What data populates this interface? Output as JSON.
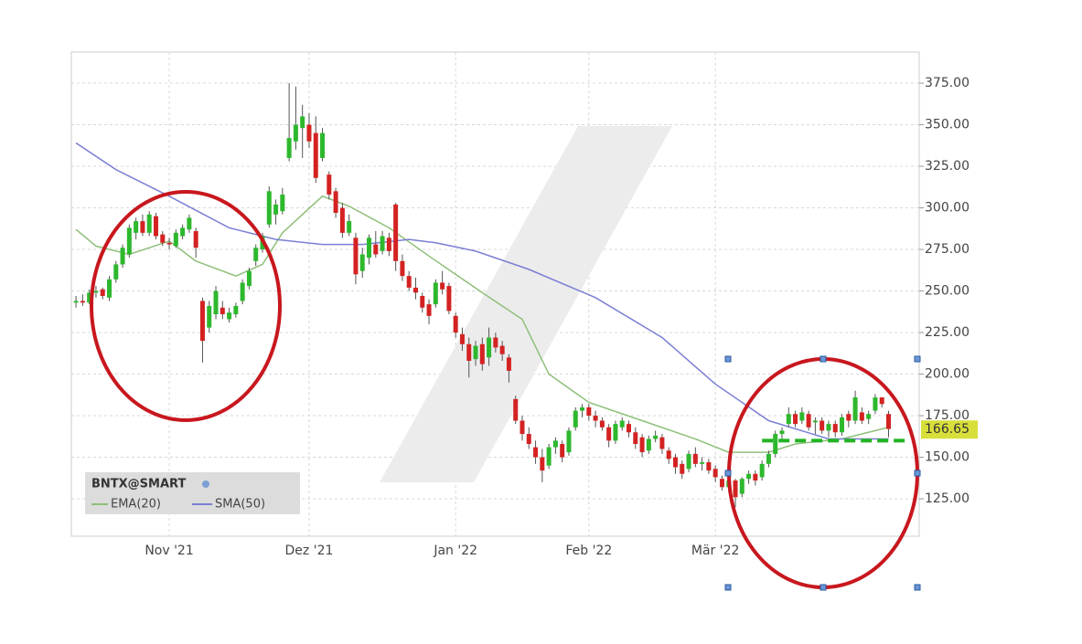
{
  "chart_data": {
    "type": "candlestick",
    "symbol": "BNTX@SMART",
    "up_color": "#2db82d",
    "down_color": "#d42222",
    "xlim": [
      -0.7,
      126.6
    ],
    "ylim": [
      102.5,
      393.7
    ],
    "yticks": [
      {
        "value": 125,
        "label": "125.00"
      },
      {
        "value": 150,
        "label": "150.00"
      },
      {
        "value": 175,
        "label": "175.00"
      },
      {
        "value": 200,
        "label": "200.00"
      },
      {
        "value": 225,
        "label": "225.00"
      },
      {
        "value": 250,
        "label": "250.00"
      },
      {
        "value": 275,
        "label": "275.00"
      },
      {
        "value": 300,
        "label": "300.00"
      },
      {
        "value": 325,
        "label": "325.00"
      },
      {
        "value": 350,
        "label": "350.00"
      },
      {
        "value": 375,
        "label": "375.00"
      }
    ],
    "grid": true,
    "categories": [
      null,
      null,
      null,
      null,
      null,
      null,
      null,
      null,
      null,
      null,
      null,
      null,
      null,
      null,
      "Nov '21",
      null,
      null,
      null,
      null,
      null,
      null,
      null,
      null,
      null,
      null,
      null,
      null,
      null,
      null,
      null,
      null,
      null,
      null,
      null,
      null,
      "Dez '21",
      null,
      null,
      null,
      null,
      null,
      null,
      null,
      null,
      null,
      null,
      null,
      null,
      null,
      null,
      null,
      null,
      null,
      null,
      null,
      null,
      null,
      "Jan '22",
      null,
      null,
      null,
      null,
      null,
      null,
      null,
      null,
      null,
      null,
      null,
      null,
      null,
      null,
      null,
      null,
      null,
      null,
      null,
      "Feb '22",
      null,
      null,
      null,
      null,
      null,
      null,
      null,
      null,
      null,
      null,
      null,
      null,
      null,
      null,
      null,
      null,
      null,
      null,
      "Mär '22",
      null,
      null,
      null,
      null,
      null,
      null,
      null,
      null,
      null,
      null,
      null,
      null,
      null,
      null,
      null,
      null,
      null,
      null,
      null,
      null,
      null,
      null,
      null,
      null,
      null,
      null
    ],
    "ohlc": [
      [
        243,
        247,
        240,
        244
      ],
      [
        244,
        248,
        241,
        243
      ],
      [
        243,
        251,
        242,
        249
      ],
      [
        249,
        253,
        246,
        250
      ],
      [
        251,
        252,
        245,
        247
      ],
      [
        246,
        259,
        244,
        257
      ],
      [
        257,
        268,
        255,
        266
      ],
      [
        266,
        278,
        264,
        276
      ],
      [
        272,
        290,
        270,
        288
      ],
      [
        285,
        294,
        281,
        292
      ],
      [
        292,
        296,
        283,
        285
      ],
      [
        285,
        298,
        283,
        296
      ],
      [
        295,
        297,
        281,
        283
      ],
      [
        284,
        286,
        277,
        279
      ],
      [
        279,
        282,
        275,
        278
      ],
      [
        277,
        287,
        276,
        285
      ],
      [
        283,
        290,
        281,
        288
      ],
      [
        287,
        296,
        285,
        294
      ],
      [
        286,
        288,
        270,
        276
      ],
      [
        244,
        246,
        207,
        220
      ],
      [
        228,
        244,
        225,
        241
      ],
      [
        236,
        253,
        233,
        250
      ],
      [
        240,
        244,
        233,
        236
      ],
      [
        233,
        240,
        231,
        237
      ],
      [
        236,
        243,
        234,
        241
      ],
      [
        244,
        257,
        242,
        255
      ],
      [
        253,
        264,
        251,
        262
      ],
      [
        268,
        278,
        265,
        276
      ],
      [
        275,
        285,
        273,
        283
      ],
      [
        290,
        313,
        288,
        310
      ],
      [
        296,
        305,
        290,
        302
      ],
      [
        298,
        312,
        296,
        308
      ],
      [
        330,
        375,
        328,
        342
      ],
      [
        340,
        373,
        335,
        350
      ],
      [
        348,
        362,
        330,
        355
      ],
      [
        350,
        357,
        336,
        340
      ],
      [
        345,
        355,
        315,
        318
      ],
      [
        330,
        348,
        328,
        345
      ],
      [
        320,
        322,
        305,
        308
      ],
      [
        310,
        312,
        294,
        297
      ],
      [
        300,
        303,
        282,
        285
      ],
      [
        285,
        296,
        283,
        292
      ],
      [
        282,
        285,
        254,
        260
      ],
      [
        262,
        276,
        258,
        272
      ],
      [
        270,
        284,
        266,
        282
      ],
      [
        278,
        286,
        270,
        272
      ],
      [
        274,
        286,
        272,
        283
      ],
      [
        282,
        285,
        271,
        274
      ],
      [
        302,
        303,
        262,
        268
      ],
      [
        268,
        272,
        256,
        259
      ],
      [
        259,
        262,
        250,
        252
      ],
      [
        252,
        258,
        245,
        249
      ],
      [
        247,
        249,
        237,
        240
      ],
      [
        242,
        245,
        230,
        235
      ],
      [
        242,
        257,
        240,
        255
      ],
      [
        255,
        262,
        248,
        251
      ],
      [
        253,
        255,
        236,
        238
      ],
      [
        235,
        237,
        222,
        225
      ],
      [
        224,
        228,
        214,
        218
      ],
      [
        218,
        222,
        198,
        208
      ],
      [
        209,
        220,
        205,
        217
      ],
      [
        218,
        222,
        202,
        206
      ],
      [
        210,
        228,
        205,
        222
      ],
      [
        222,
        225,
        213,
        216
      ],
      [
        217,
        220,
        208,
        212
      ],
      [
        210,
        212,
        195,
        202
      ],
      [
        185,
        187,
        170,
        172
      ],
      [
        172,
        175,
        160,
        164
      ],
      [
        164,
        168,
        155,
        158
      ],
      [
        156,
        160,
        146,
        150
      ],
      [
        150,
        155,
        135,
        142
      ],
      [
        145,
        158,
        143,
        156
      ],
      [
        156,
        162,
        152,
        160
      ],
      [
        158,
        160,
        147,
        150
      ],
      [
        153,
        168,
        151,
        166
      ],
      [
        168,
        180,
        166,
        178
      ],
      [
        178,
        182,
        174,
        180
      ],
      [
        180,
        182,
        172,
        175
      ],
      [
        175,
        178,
        168,
        172
      ],
      [
        172,
        174,
        166,
        168
      ],
      [
        168,
        170,
        156,
        160
      ],
      [
        160,
        172,
        158,
        170
      ],
      [
        168,
        174,
        166,
        172
      ],
      [
        170,
        172,
        162,
        165
      ],
      [
        165,
        168,
        155,
        158
      ],
      [
        162,
        164,
        150,
        153
      ],
      [
        154,
        163,
        152,
        161
      ],
      [
        161,
        166,
        159,
        163
      ],
      [
        162,
        164,
        152,
        155
      ],
      [
        154,
        156,
        146,
        149
      ],
      [
        150,
        152,
        140,
        144
      ],
      [
        146,
        148,
        137,
        140
      ],
      [
        143,
        154,
        141,
        152
      ],
      [
        152,
        156,
        144,
        146
      ],
      [
        146,
        150,
        142,
        147
      ],
      [
        147,
        149,
        140,
        142
      ],
      [
        143,
        145,
        135,
        138
      ],
      [
        137,
        139,
        130,
        132
      ],
      [
        132,
        138,
        129,
        136
      ],
      [
        136,
        137,
        120,
        126
      ],
      [
        128,
        138,
        126,
        137
      ],
      [
        137,
        142,
        134,
        140
      ],
      [
        140,
        142,
        133,
        136
      ],
      [
        138,
        148,
        136,
        146
      ],
      [
        146,
        154,
        144,
        152
      ],
      [
        152,
        166,
        150,
        164
      ],
      [
        164,
        168,
        160,
        166
      ],
      [
        170,
        180,
        168,
        176
      ],
      [
        176,
        178,
        168,
        170
      ],
      [
        172,
        180,
        170,
        177
      ],
      [
        176,
        178,
        166,
        168
      ],
      [
        171,
        174,
        164,
        172
      ],
      [
        172,
        174,
        164,
        166
      ],
      [
        166,
        172,
        162,
        170
      ],
      [
        170,
        172,
        162,
        165
      ],
      [
        165,
        176,
        163,
        174
      ],
      [
        176,
        178,
        168,
        172
      ],
      [
        172,
        190,
        170,
        186
      ],
      [
        177,
        180,
        170,
        172
      ],
      [
        173,
        178,
        170,
        176
      ],
      [
        178,
        188,
        176,
        186
      ],
      [
        186,
        186,
        180,
        182
      ],
      [
        176,
        178,
        162,
        167
      ]
    ],
    "lines": [
      {
        "name": "EMA(20)",
        "color": "#8fbf7a",
        "x": [
          0,
          3,
          8,
          14,
          18,
          24,
          28,
          31,
          37,
          41,
          47,
          53,
          57,
          61,
          67,
          71,
          77,
          85,
          93,
          98,
          104,
          108,
          115,
          122
        ],
        "values": [
          287,
          277,
          272,
          280,
          268,
          259,
          266,
          285,
          307,
          301,
          288,
          271,
          260,
          249,
          233,
          200,
          183,
          172,
          161,
          153,
          153,
          158,
          161,
          168
        ]
      },
      {
        "name": "SMA(50)",
        "color": "#7b7fd4",
        "x": [
          0,
          6,
          14,
          23,
          30,
          37,
          43,
          50,
          54,
          60,
          68,
          78,
          88,
          96,
          104,
          113,
          122
        ],
        "values": [
          339,
          323,
          307,
          288,
          281,
          278,
          278,
          281,
          279,
          274,
          263,
          246,
          222,
          194,
          172,
          161,
          161
        ]
      }
    ],
    "last_price": 166.65,
    "support": {
      "value": 160,
      "x": [
        103,
        125
      ]
    }
  }
}
